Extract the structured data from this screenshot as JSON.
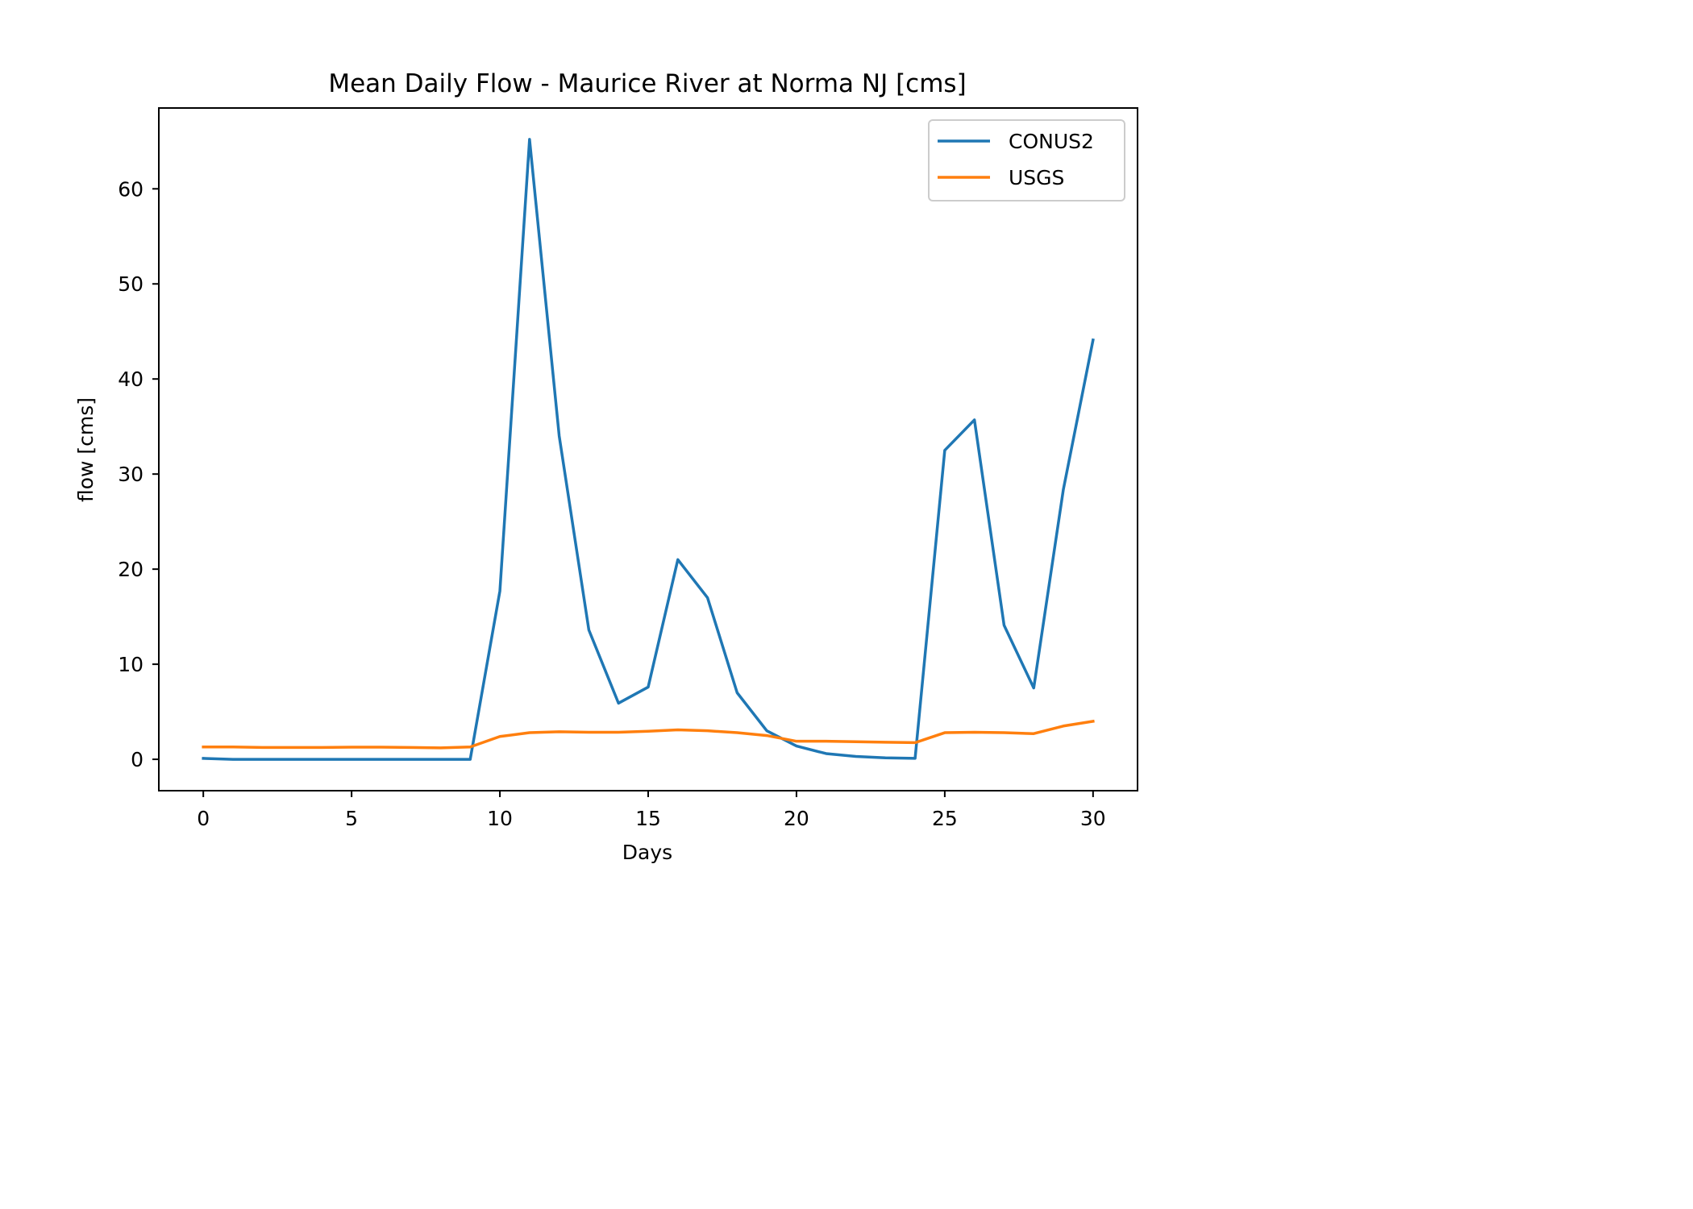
{
  "chart_data": {
    "type": "line",
    "title": "Mean Daily Flow - Maurice River at Norma NJ [cms]",
    "xlabel": "Days",
    "ylabel": "flow [cms]",
    "xlim": [
      -1.5,
      31.5
    ],
    "ylim": [
      -3.3,
      68.5
    ],
    "xticks": [
      0,
      5,
      10,
      15,
      20,
      25,
      30
    ],
    "yticks": [
      0,
      10,
      20,
      30,
      40,
      50,
      60
    ],
    "grid": false,
    "legend_position": "upper right",
    "x": [
      0,
      1,
      2,
      3,
      4,
      5,
      6,
      7,
      8,
      9,
      10,
      11,
      12,
      13,
      14,
      15,
      16,
      17,
      18,
      19,
      20,
      21,
      22,
      23,
      24,
      25,
      26,
      27,
      28,
      29,
      30
    ],
    "series": [
      {
        "name": "CONUS2",
        "color": "#1f77b4",
        "values": [
          0.1,
          0,
          0,
          0,
          0,
          0,
          0,
          0,
          0,
          0,
          17.7,
          65.2,
          34.0,
          13.6,
          5.9,
          7.6,
          21.0,
          17.0,
          7.0,
          3.0,
          1.4,
          0.6,
          0.3,
          0.15,
          0.1,
          32.5,
          35.7,
          14.1,
          7.5,
          28.4,
          44.1
        ]
      },
      {
        "name": "USGS",
        "color": "#ff7f0e",
        "values": [
          1.3,
          1.3,
          1.25,
          1.25,
          1.25,
          1.28,
          1.28,
          1.25,
          1.2,
          1.3,
          2.4,
          2.8,
          2.9,
          2.85,
          2.85,
          2.95,
          3.1,
          3.0,
          2.8,
          2.5,
          1.9,
          1.9,
          1.85,
          1.8,
          1.75,
          2.8,
          2.85,
          2.8,
          2.7,
          3.5,
          4.0
        ]
      }
    ]
  }
}
